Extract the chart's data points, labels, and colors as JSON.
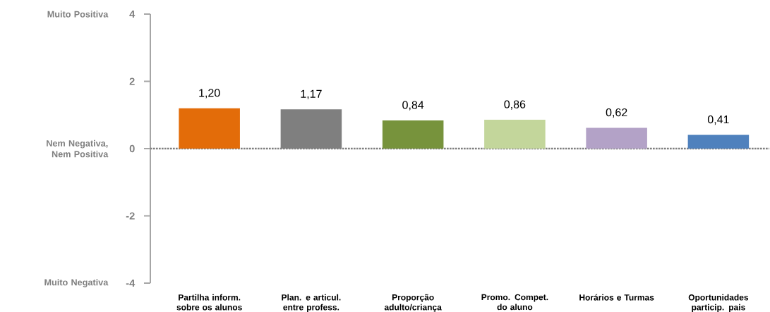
{
  "chart_data": {
    "type": "bar",
    "categories": [
      "Partilha inform. sobre os alunos",
      "Plan. e articul. entre profess.",
      "Proporção adulto/criança",
      "Promo. Compet. do aluno",
      "Horários e Turmas",
      "Oportunidades particip. pais"
    ],
    "values": [
      1.2,
      1.17,
      0.84,
      0.86,
      0.62,
      0.41
    ],
    "value_labels": [
      "1,20",
      "1,17",
      "0,84",
      "0,86",
      "0,62",
      "0,41"
    ],
    "colors": [
      "#e36c09",
      "#7f7f7f",
      "#77933c",
      "#c3d69b",
      "#b3a2c7",
      "#4f81bd"
    ],
    "ylim": [
      -4,
      4
    ],
    "yticks": [
      -4,
      -2,
      0,
      2,
      4
    ],
    "grid": false,
    "ref_lines": [
      {
        "axis": "y",
        "value": 0,
        "color": "#7f7f7f",
        "line_style": "dotted"
      }
    ],
    "annotations": [
      "Muito Positiva",
      "Nem Negativa, Nem Positiva",
      "Muito Negativa"
    ]
  }
}
